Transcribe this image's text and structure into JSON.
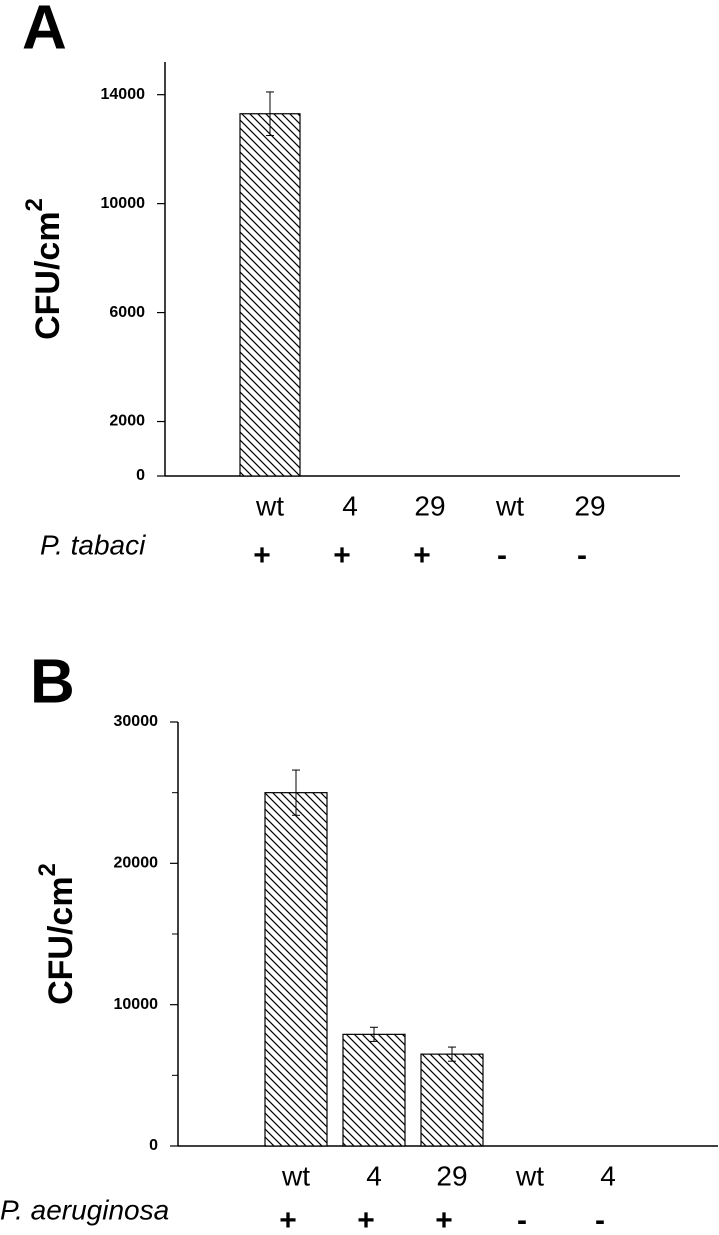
{
  "chart_data": [
    {
      "type": "bar",
      "panel": "A",
      "y_label": "CFU/cm",
      "y_label_sup": "2",
      "categories": [
        "wt",
        "4",
        "29",
        "wt",
        "29"
      ],
      "values": [
        13300,
        0,
        0,
        0,
        0
      ],
      "errors": [
        800,
        null,
        null,
        null,
        null
      ],
      "row_label": "P. tabaci",
      "row_values": [
        "+",
        "+",
        "+",
        "-",
        "-"
      ],
      "ylim": [
        0,
        15200
      ],
      "yticks": [
        0,
        2000,
        6000,
        10000,
        14000
      ],
      "grid": false
    },
    {
      "type": "bar",
      "panel": "B",
      "y_label": "CFU/cm",
      "y_label_sup": "2",
      "categories": [
        "wt",
        "4",
        "29",
        "wt",
        "4"
      ],
      "values": [
        25000,
        7900,
        6500,
        0,
        0
      ],
      "errors": [
        1600,
        500,
        500,
        null,
        null
      ],
      "row_label": "P. aeruginosa",
      "row_values": [
        "+",
        "+",
        "+",
        "-",
        "-"
      ],
      "ylim": [
        0,
        30000
      ],
      "yticks": [
        0,
        10000,
        20000,
        30000
      ],
      "minor_yticks": [
        5000,
        15000,
        25000
      ],
      "grid": false
    }
  ]
}
